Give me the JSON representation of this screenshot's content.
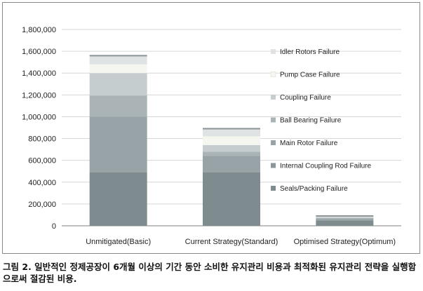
{
  "caption": "그림 2. 일반적인 정제공장이 6개월 이상의 기간 동안 소비한 유지관리 비용과 최적화된 유지관리 전략을 실행함으로써 절감된 비용.",
  "chart_data": {
    "type": "bar",
    "stacked": true,
    "categories": [
      "Unmitigated(Basic)",
      "Current Strategy(Standard)",
      "Optimised Strategy(Optimum)"
    ],
    "ylim": [
      0,
      1800000
    ],
    "yticks": [
      0,
      200000,
      400000,
      600000,
      800000,
      1000000,
      1200000,
      1400000,
      1600000,
      1800000
    ],
    "ytick_labels": [
      "0",
      "200,000",
      "400,000",
      "600,000",
      "800,000",
      "1,000,000",
      "1,200,000",
      "1,400,000",
      "1,600,000",
      "1,800,000"
    ],
    "grid": true,
    "legend_position": "right",
    "series": [
      {
        "name": "Seals/Packing Failure",
        "color": "#7f8c8f",
        "values": [
          490000,
          490000,
          50000
        ]
      },
      {
        "name": "Internal Coupling Rod Failure",
        "color": "#8a9699",
        "values": [
          10000,
          10000,
          2000
        ]
      },
      {
        "name": "Main Rotor Failure",
        "color": "#97a3a6",
        "values": [
          500000,
          140000,
          13000
        ]
      },
      {
        "name": "Ball Bearing Failure",
        "color": "#aab4b7",
        "values": [
          195000,
          40000,
          8000
        ]
      },
      {
        "name": "Coupling Failure",
        "color": "#c5cdcf",
        "values": [
          205000,
          60000,
          7000
        ]
      },
      {
        "name": "Pump Case Failure",
        "color": "#f5f6ef",
        "values": [
          80000,
          80000,
          5000
        ]
      },
      {
        "name": "Idler Rotors Failure",
        "color": "#dfe3e4",
        "values": [
          80000,
          70000,
          5000
        ]
      }
    ],
    "bar_top_color": "#8b9396"
  }
}
